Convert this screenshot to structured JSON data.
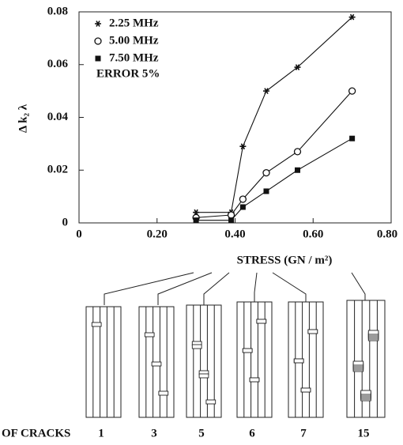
{
  "chart_data": {
    "type": "line",
    "y_label": "Δ k₂ λ",
    "x_label": "STRESS (GN / m²)",
    "annotation": "ERROR 5%",
    "xlim": [
      0,
      0.8
    ],
    "xticks": [
      0,
      {
        "value": 0.2,
        "label": "0.20"
      },
      {
        "value": 0.4,
        "label": "0.40"
      },
      {
        "value": 0.6,
        "label": "0.60"
      },
      {
        "value": 0.8,
        "label": "0.80"
      }
    ],
    "ylim": [
      0,
      0.08
    ],
    "yticks": [
      0,
      0.02,
      0.04,
      0.06,
      0.08
    ],
    "x": [
      0.3,
      0.39,
      0.42,
      0.48,
      0.56,
      0.7
    ],
    "series": [
      {
        "name": "2.25 MHz",
        "marker": "star",
        "color": "#111111",
        "values": [
          0.004,
          0.004,
          0.029,
          0.05,
          0.059,
          0.078
        ]
      },
      {
        "name": "5.00 MHz",
        "marker": "circle",
        "color": "#111111",
        "values": [
          0.002,
          0.003,
          0.009,
          0.019,
          0.027,
          0.05
        ]
      },
      {
        "name": "7.50 MHz",
        "marker": "square",
        "color": "#111111",
        "values": [
          0.001,
          0.001,
          0.006,
          0.012,
          0.02,
          0.032
        ]
      }
    ]
  },
  "crack_panels": {
    "label": "OF CRACKS",
    "counts": [
      1,
      3,
      5,
      6,
      7,
      15
    ]
  }
}
